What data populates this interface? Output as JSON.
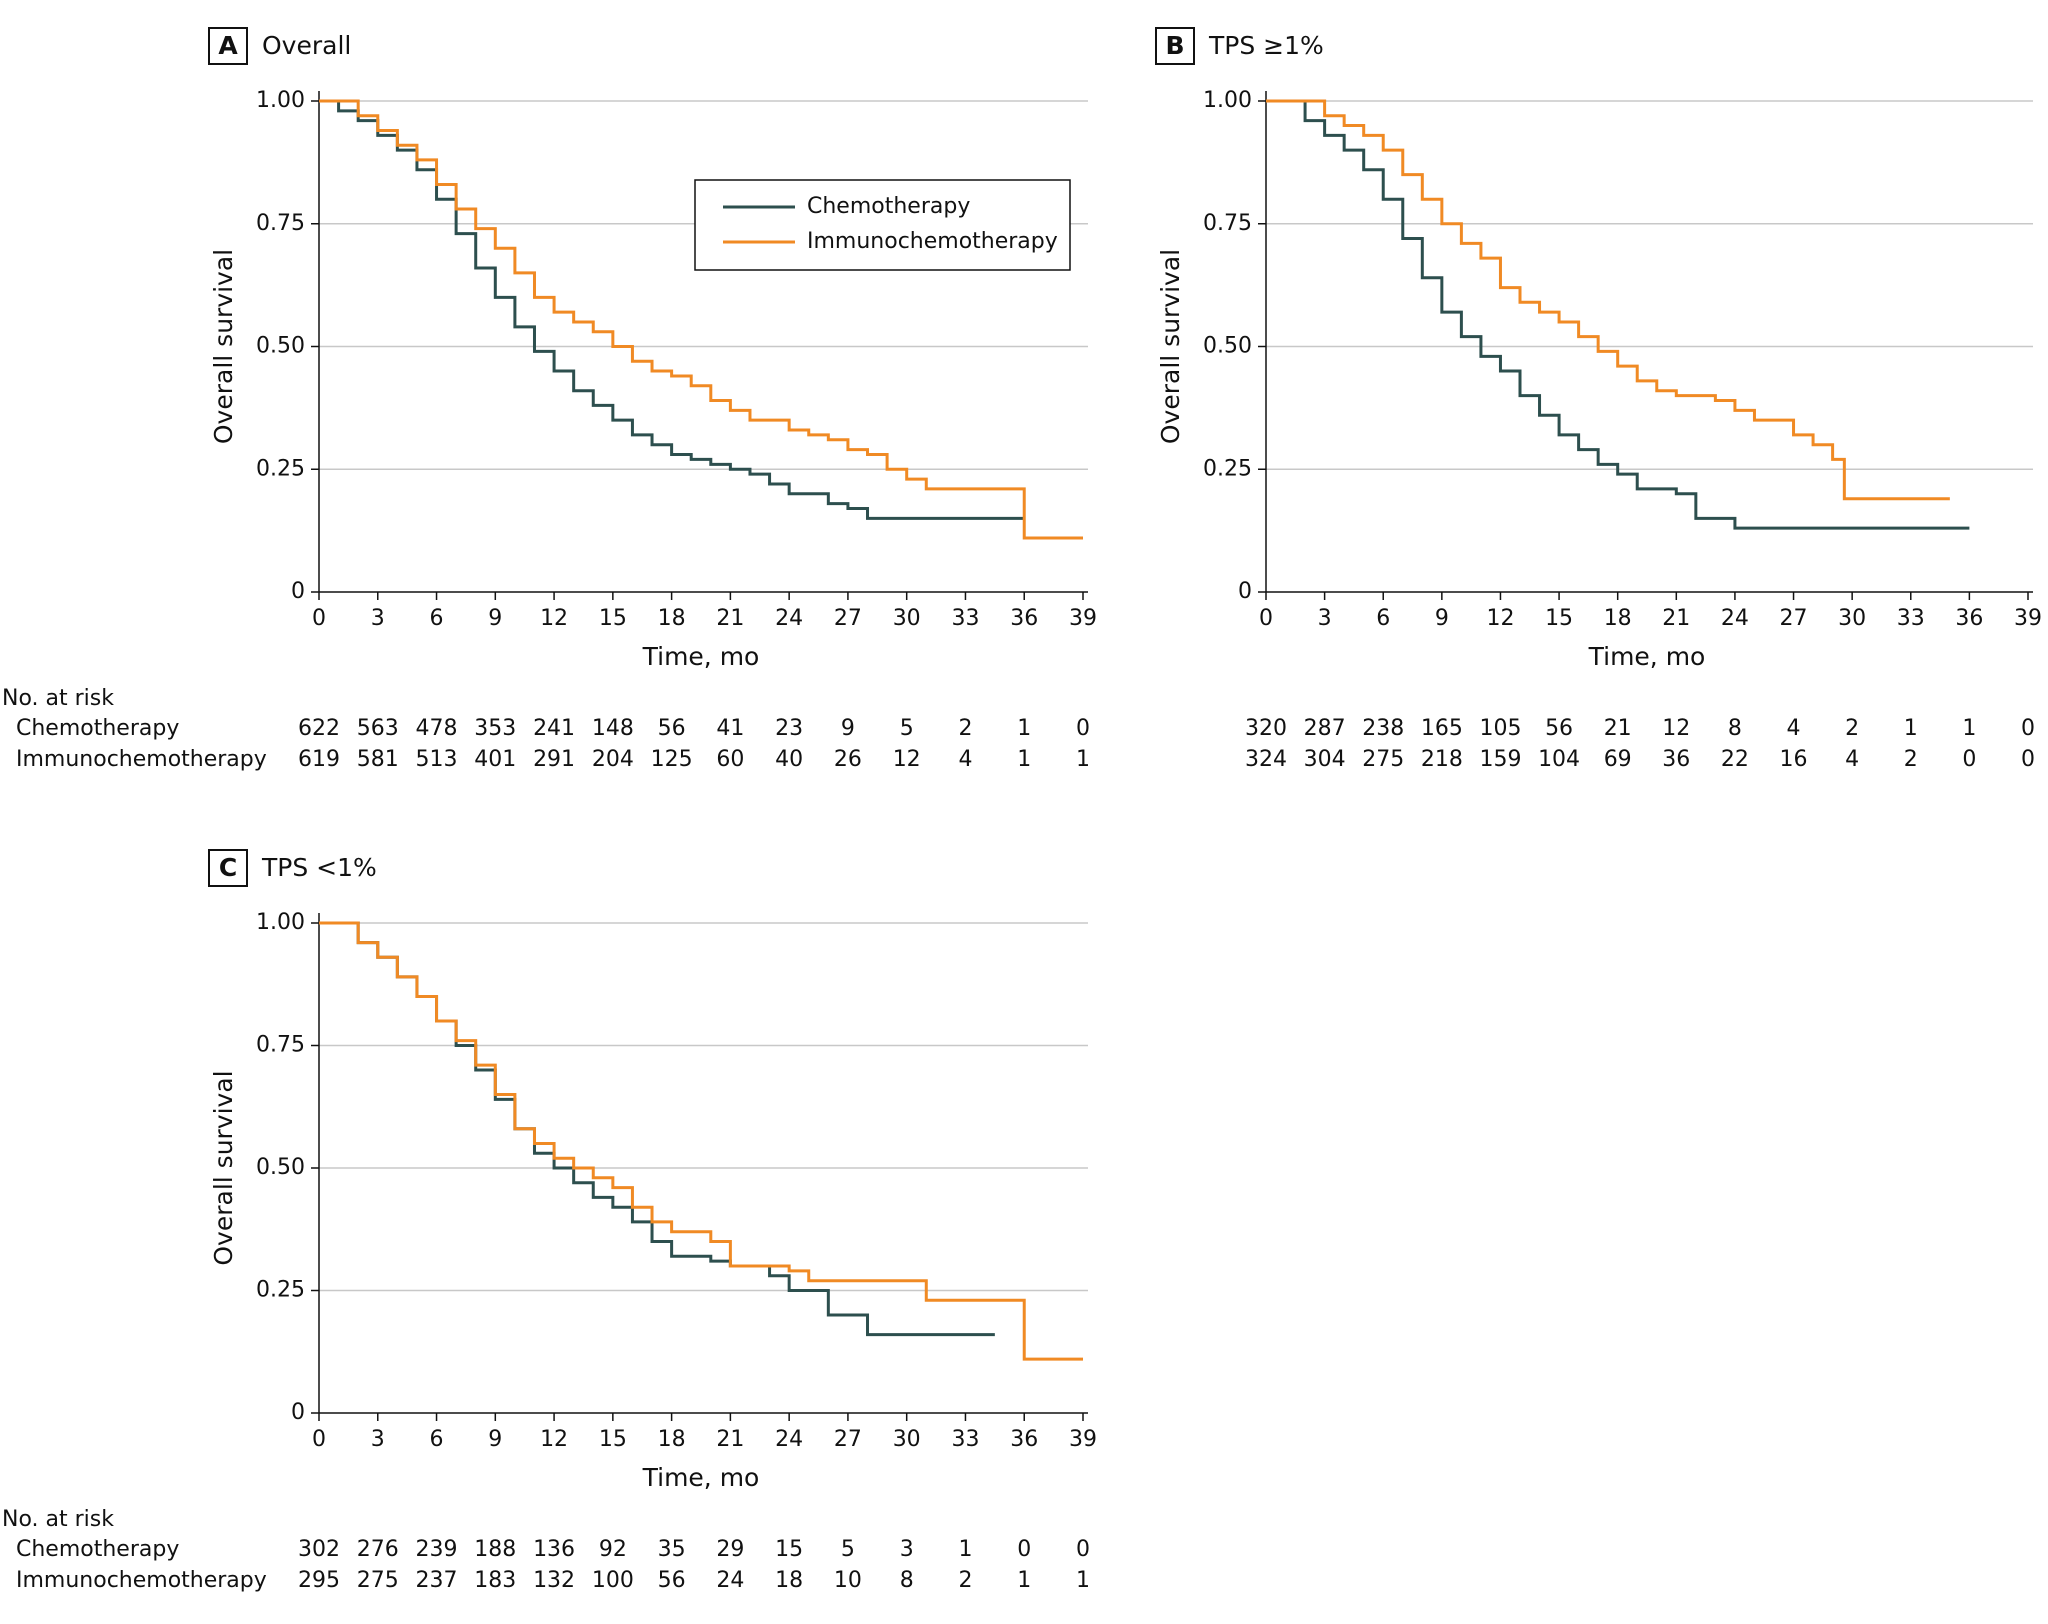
{
  "chart_data": [
    {
      "type": "line",
      "panel": "A",
      "title": "Overall",
      "xlabel": "Time, mo",
      "ylabel": "Overall survival",
      "xlim": [
        0,
        39
      ],
      "xticks": [
        0,
        3,
        6,
        9,
        12,
        15,
        18,
        21,
        24,
        27,
        30,
        33,
        36,
        39
      ],
      "ylim": [
        0,
        1
      ],
      "yticks": [
        0,
        {
          "value": 0.25,
          "label": "0.25"
        },
        {
          "value": 0.5,
          "label": "0.50"
        },
        {
          "value": 0.75,
          "label": "0.75"
        },
        {
          "value": 1,
          "label": "1.00"
        }
      ],
      "grid": true,
      "legend": "upper right",
      "series": [
        {
          "name": "Chemotherapy",
          "color": "#2d4f4e",
          "x": [
            0,
            1,
            2,
            3,
            4,
            5,
            6,
            7,
            8,
            9,
            10,
            11,
            12,
            13,
            14,
            15,
            16,
            17,
            18,
            19,
            20,
            21,
            22,
            23,
            24,
            25,
            26,
            27,
            28,
            36
          ],
          "values": [
            1,
            0.98,
            0.96,
            0.93,
            0.9,
            0.86,
            0.8,
            0.73,
            0.66,
            0.6,
            0.54,
            0.49,
            0.45,
            0.41,
            0.38,
            0.35,
            0.32,
            0.3,
            0.28,
            0.27,
            0.26,
            0.25,
            0.24,
            0.22,
            0.2,
            0.2,
            0.18,
            0.17,
            0.15,
            0.15
          ]
        },
        {
          "name": "Immunochemotherapy",
          "color": "#f08a24",
          "x": [
            0,
            2,
            3,
            4,
            5,
            6,
            7,
            8,
            9,
            10,
            11,
            12,
            13,
            14,
            15,
            16,
            17,
            18,
            19,
            20,
            21,
            22,
            24,
            25,
            26,
            27,
            28,
            29,
            30,
            31,
            36,
            39
          ],
          "values": [
            1,
            0.97,
            0.94,
            0.91,
            0.88,
            0.83,
            0.78,
            0.74,
            0.7,
            0.65,
            0.6,
            0.57,
            0.55,
            0.53,
            0.5,
            0.47,
            0.45,
            0.44,
            0.42,
            0.39,
            0.37,
            0.35,
            0.33,
            0.32,
            0.31,
            0.29,
            0.28,
            0.25,
            0.23,
            0.21,
            0.11,
            0.11
          ]
        }
      ],
      "risk_table": {
        "title": "No. at risk",
        "rows": [
          [
            622,
            563,
            478,
            353,
            241,
            148,
            56,
            41,
            23,
            9,
            5,
            2,
            1,
            0
          ],
          [
            619,
            581,
            513,
            401,
            291,
            204,
            125,
            60,
            40,
            26,
            12,
            4,
            1,
            1
          ]
        ]
      }
    },
    {
      "type": "line",
      "panel": "B",
      "title": "TPS ≥1%",
      "xlabel": "Time, mo",
      "ylabel": "Overall survival",
      "xlim": [
        0,
        39
      ],
      "xticks": [
        0,
        3,
        6,
        9,
        12,
        15,
        18,
        21,
        24,
        27,
        30,
        33,
        36,
        39
      ],
      "ylim": [
        0,
        1
      ],
      "yticks": [
        0,
        {
          "value": 0.25,
          "label": "0.25"
        },
        {
          "value": 0.5,
          "label": "0.50"
        },
        {
          "value": 0.75,
          "label": "0.75"
        },
        {
          "value": 1,
          "label": "1.00"
        }
      ],
      "grid": true,
      "series": [
        {
          "name": "Chemotherapy",
          "color": "#2d4f4e",
          "x": [
            0,
            2,
            3,
            4,
            5,
            6,
            7,
            8,
            9,
            10,
            11,
            12,
            13,
            14,
            15,
            16,
            17,
            18,
            19,
            21,
            22,
            24,
            36
          ],
          "values": [
            1,
            0.96,
            0.93,
            0.9,
            0.86,
            0.8,
            0.72,
            0.64,
            0.57,
            0.52,
            0.48,
            0.45,
            0.4,
            0.36,
            0.32,
            0.29,
            0.26,
            0.24,
            0.21,
            0.2,
            0.15,
            0.13,
            0.13
          ]
        },
        {
          "name": "Immunochemotherapy",
          "color": "#f08a24",
          "x": [
            0,
            3,
            4,
            5,
            6,
            7,
            8,
            9,
            10,
            11,
            12,
            13,
            14,
            15,
            16,
            17,
            18,
            19,
            20,
            21,
            23,
            24,
            25,
            27,
            28,
            29,
            29.6,
            35
          ],
          "values": [
            1,
            0.97,
            0.95,
            0.93,
            0.9,
            0.85,
            0.8,
            0.75,
            0.71,
            0.68,
            0.62,
            0.59,
            0.57,
            0.55,
            0.52,
            0.49,
            0.46,
            0.43,
            0.41,
            0.4,
            0.39,
            0.37,
            0.35,
            0.32,
            0.3,
            0.27,
            0.19,
            0.19
          ]
        }
      ],
      "risk_table": {
        "rows": [
          [
            320,
            287,
            238,
            165,
            105,
            56,
            21,
            12,
            8,
            4,
            2,
            1,
            1,
            0
          ],
          [
            324,
            304,
            275,
            218,
            159,
            104,
            69,
            36,
            22,
            16,
            4,
            2,
            0,
            0
          ]
        ]
      }
    },
    {
      "type": "line",
      "panel": "C",
      "title": "TPS <1%",
      "xlabel": "Time, mo",
      "ylabel": "Overall survival",
      "xlim": [
        0,
        39
      ],
      "xticks": [
        0,
        3,
        6,
        9,
        12,
        15,
        18,
        21,
        24,
        27,
        30,
        33,
        36,
        39
      ],
      "ylim": [
        0,
        1
      ],
      "yticks": [
        0,
        {
          "value": 0.25,
          "label": "0.25"
        },
        {
          "value": 0.5,
          "label": "0.50"
        },
        {
          "value": 0.75,
          "label": "0.75"
        },
        {
          "value": 1,
          "label": "1.00"
        }
      ],
      "grid": true,
      "series": [
        {
          "name": "Chemotherapy",
          "color": "#2d4f4e",
          "x": [
            0,
            2,
            3,
            4,
            5,
            6,
            7,
            8,
            9,
            10,
            11,
            12,
            13,
            14,
            15,
            16,
            17,
            18,
            20,
            21,
            23,
            24,
            26,
            28,
            34.5
          ],
          "values": [
            1,
            0.96,
            0.93,
            0.89,
            0.85,
            0.8,
            0.75,
            0.7,
            0.64,
            0.58,
            0.53,
            0.5,
            0.47,
            0.44,
            0.42,
            0.39,
            0.35,
            0.32,
            0.31,
            0.3,
            0.28,
            0.25,
            0.2,
            0.16,
            0.16
          ]
        },
        {
          "name": "Immunochemotherapy",
          "color": "#f08a24",
          "x": [
            0,
            2,
            3,
            4,
            5,
            6,
            7,
            8,
            9,
            10,
            11,
            12,
            13,
            14,
            15,
            16,
            17,
            18,
            20,
            21,
            24,
            25,
            31,
            36,
            39
          ],
          "values": [
            1,
            0.96,
            0.93,
            0.89,
            0.85,
            0.8,
            0.76,
            0.71,
            0.65,
            0.58,
            0.55,
            0.52,
            0.5,
            0.48,
            0.46,
            0.42,
            0.39,
            0.37,
            0.35,
            0.3,
            0.29,
            0.27,
            0.23,
            0.11,
            0.11
          ]
        }
      ],
      "risk_table": {
        "title": "No. at risk",
        "rows": [
          [
            302,
            276,
            239,
            188,
            136,
            92,
            35,
            29,
            15,
            5,
            3,
            1,
            0,
            0
          ],
          [
            295,
            275,
            237,
            183,
            132,
            100,
            56,
            24,
            18,
            10,
            8,
            2,
            1,
            1
          ]
        ]
      }
    }
  ]
}
